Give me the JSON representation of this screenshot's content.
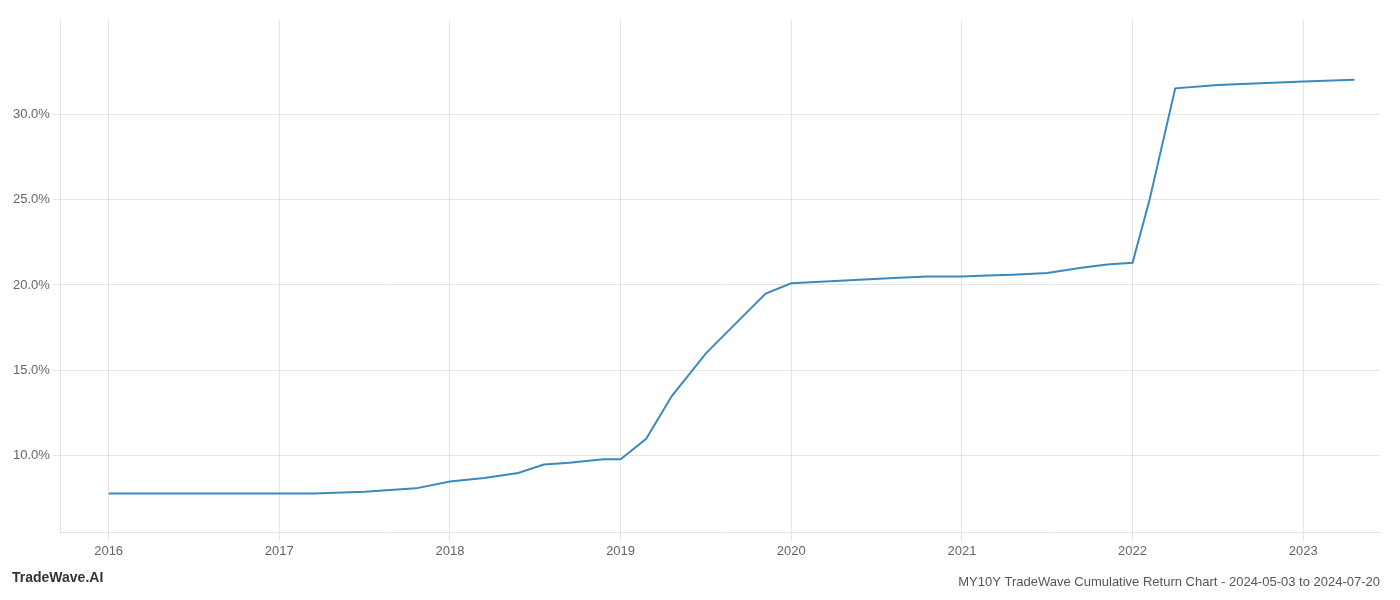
{
  "chart_data": {
    "type": "line",
    "title": "MY10Y TradeWave Cumulative Return Chart - 2024-05-03 to 2024-07-20",
    "annotations": [
      "TradeWave.AI"
    ],
    "x": [
      2016.0,
      2016.1,
      2016.3,
      2016.6,
      2016.9,
      2017.0,
      2017.2,
      2017.5,
      2017.8,
      2018.0,
      2018.2,
      2018.4,
      2018.55,
      2018.7,
      2018.9,
      2019.0,
      2019.15,
      2019.3,
      2019.5,
      2019.7,
      2019.85,
      2020.0,
      2020.2,
      2020.4,
      2020.6,
      2020.8,
      2021.0,
      2021.15,
      2021.3,
      2021.5,
      2021.7,
      2021.85,
      2022.0,
      2022.1,
      2022.25,
      2022.5,
      2022.75,
      2023.0,
      2023.3
    ],
    "values": [
      7.8,
      7.8,
      7.8,
      7.8,
      7.8,
      7.8,
      7.8,
      7.9,
      8.1,
      8.5,
      8.7,
      9.0,
      9.5,
      9.6,
      9.8,
      9.8,
      11.0,
      13.5,
      16.0,
      18.0,
      19.5,
      20.1,
      20.2,
      20.3,
      20.4,
      20.5,
      20.5,
      20.55,
      20.6,
      20.7,
      21.0,
      21.2,
      21.3,
      25.0,
      31.5,
      31.7,
      31.8,
      31.9,
      32.0
    ],
    "color": "#3a8abf",
    "xlim": [
      2015.72,
      2023.45
    ],
    "xticks": [
      2016,
      2017,
      2018,
      2019,
      2020,
      2021,
      2022,
      2023
    ],
    "ylim": [
      5.5,
      35.5
    ],
    "yticks": [
      {
        "value": 10.0,
        "label": "10.0%"
      },
      {
        "value": 15.0,
        "label": "15.0%"
      },
      {
        "value": 20.0,
        "label": "20.0%"
      },
      {
        "value": 25.0,
        "label": "25.0%"
      },
      {
        "value": 30.0,
        "label": "30.0%"
      }
    ],
    "grid": true
  }
}
